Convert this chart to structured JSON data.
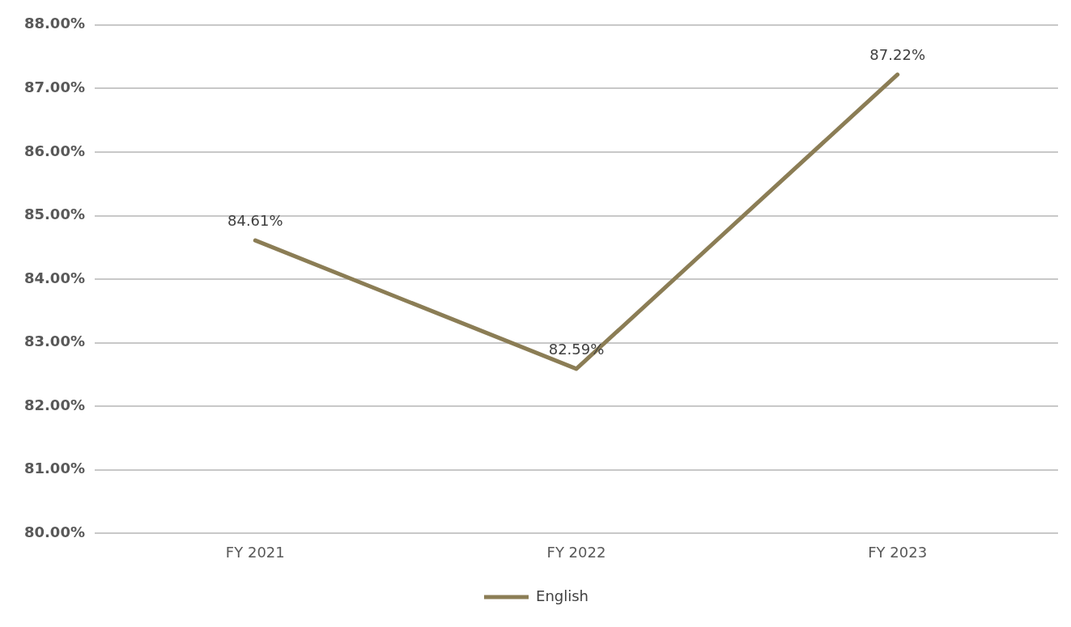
{
  "chart_data": {
    "type": "line",
    "categories": [
      "FY 2021",
      "FY 2022",
      "FY 2023"
    ],
    "series": [
      {
        "name": "English",
        "color": "#8b7d55",
        "values": [
          84.61,
          82.59,
          87.22
        ],
        "value_labels": [
          "84.61%",
          "82.59%",
          "87.22%"
        ]
      }
    ],
    "ylim": [
      80,
      88
    ],
    "yticks": [
      {
        "value": 80,
        "label": "80.00%"
      },
      {
        "value": 81,
        "label": "81.00%"
      },
      {
        "value": 82,
        "label": "82.00%"
      },
      {
        "value": 83,
        "label": "83.00%"
      },
      {
        "value": 84,
        "label": "84.00%"
      },
      {
        "value": 85,
        "label": "85.00%"
      },
      {
        "value": 86,
        "label": "86.00%"
      },
      {
        "value": 87,
        "label": "87.00%"
      },
      {
        "value": 88,
        "label": "88.00%"
      }
    ],
    "grid": "y",
    "legend": "bottom",
    "marker": "none",
    "line_style": "solid"
  }
}
